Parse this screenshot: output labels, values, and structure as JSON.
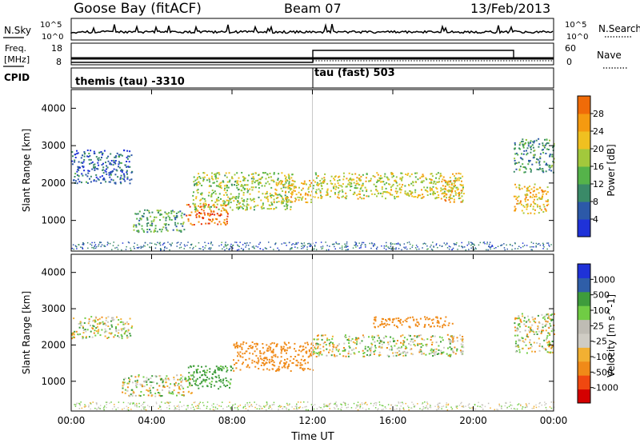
{
  "header": {
    "station": "Goose Bay (fitACF)",
    "beam": "Beam 07",
    "date": "13/Feb/2013"
  },
  "top_panel": {
    "left_label": "N.Sky",
    "right_label": "N.Search",
    "left_ticks": [
      "10^5",
      "10^0"
    ],
    "right_ticks": [
      "10^5",
      "10^0"
    ]
  },
  "freq_panel": {
    "left_label_1": "Freq.",
    "left_label_2": "[MHz]",
    "right_label": "Nave",
    "left_ticks": [
      "18",
      "8"
    ],
    "right_ticks": [
      "60",
      "0"
    ]
  },
  "cpid_panel": {
    "label": "CPID",
    "mode_1": "themis (tau) -3310",
    "mode_2": "tau (fast) 503"
  },
  "colors": {
    "power": [
      "#1f32d8",
      "#2c59a8",
      "#3a8a68",
      "#55b34a",
      "#a2c83c",
      "#f0c020",
      "#f59a10",
      "#f06b08",
      "#e83008",
      "#d40000"
    ],
    "velocity": [
      "#d40000",
      "#f04810",
      "#f08a18",
      "#f2b032",
      "#cfccc4",
      "#bfbcb4",
      "#70cc44",
      "#3e9c3c",
      "#2f5ea8",
      "#1f32d8"
    ]
  },
  "chart_data": [
    {
      "type": "heatmap",
      "title": "",
      "xlabel": "",
      "ylabel": "Slant Range [km]",
      "x_ticks": [
        "00:00",
        "04:00",
        "08:00",
        "12:00",
        "16:00",
        "20:00",
        "00:00"
      ],
      "xlim": [
        0,
        24
      ],
      "y_ticks": [
        1000,
        2000,
        3000,
        4000
      ],
      "ylim": [
        180,
        4500
      ],
      "colorbar": {
        "label": "Power [dB]",
        "ticks": [
          4,
          8,
          12,
          16,
          20,
          24,
          28
        ],
        "range": [
          0,
          32
        ]
      },
      "regions": [
        {
          "x": [
            0.0,
            3.0
          ],
          "y": [
            2000,
            2900
          ],
          "value": 5
        },
        {
          "x": [
            3.0,
            5.6
          ],
          "y": [
            700,
            1300
          ],
          "value": 10
        },
        {
          "x": [
            5.7,
            7.8
          ],
          "y": [
            900,
            1450
          ],
          "value": 24
        },
        {
          "x": [
            6.0,
            11.0
          ],
          "y": [
            1300,
            2300
          ],
          "value": 14
        },
        {
          "x": [
            10.0,
            12.0
          ],
          "y": [
            1500,
            2100
          ],
          "value": 18
        },
        {
          "x": [
            12.0,
            19.5
          ],
          "y": [
            1600,
            2300
          ],
          "value": 16
        },
        {
          "x": [
            18.5,
            19.5
          ],
          "y": [
            1500,
            2100
          ],
          "value": 20
        },
        {
          "x": [
            22.0,
            23.7
          ],
          "y": [
            1200,
            2000
          ],
          "value": 18
        },
        {
          "x": [
            22.0,
            24.0
          ],
          "y": [
            2300,
            3200
          ],
          "value": 9
        }
      ]
    },
    {
      "type": "heatmap",
      "title": "",
      "xlabel": "Time UT",
      "ylabel": "Slant Range [km]",
      "x_ticks": [
        "00:00",
        "04:00",
        "08:00",
        "12:00",
        "16:00",
        "20:00",
        "00:00"
      ],
      "xlim": [
        0,
        24
      ],
      "y_ticks": [
        1000,
        2000,
        3000,
        4000
      ],
      "ylim": [
        180,
        4500
      ],
      "colorbar": {
        "label": "Velocity [m s^-1]",
        "ticks": [
          -1000,
          -500,
          -100,
          -25,
          25,
          100,
          500,
          1000
        ]
      },
      "regions": [
        {
          "x": [
            0.0,
            3.0
          ],
          "y": [
            2200,
            2800
          ],
          "value": 0
        },
        {
          "x": [
            2.5,
            6.0
          ],
          "y": [
            600,
            1200
          ],
          "value": 0
        },
        {
          "x": [
            5.8,
            8.0
          ],
          "y": [
            800,
            1450
          ],
          "value": 200
        },
        {
          "x": [
            8.0,
            12.0
          ],
          "y": [
            1300,
            2100
          ],
          "value": -300
        },
        {
          "x": [
            12.0,
            19.5
          ],
          "y": [
            1700,
            2300
          ],
          "value": 0
        },
        {
          "x": [
            15.0,
            19.0
          ],
          "y": [
            2500,
            2800
          ],
          "value": -300
        },
        {
          "x": [
            22.0,
            24.0
          ],
          "y": [
            1800,
            2900
          ],
          "value": 0
        }
      ]
    }
  ]
}
